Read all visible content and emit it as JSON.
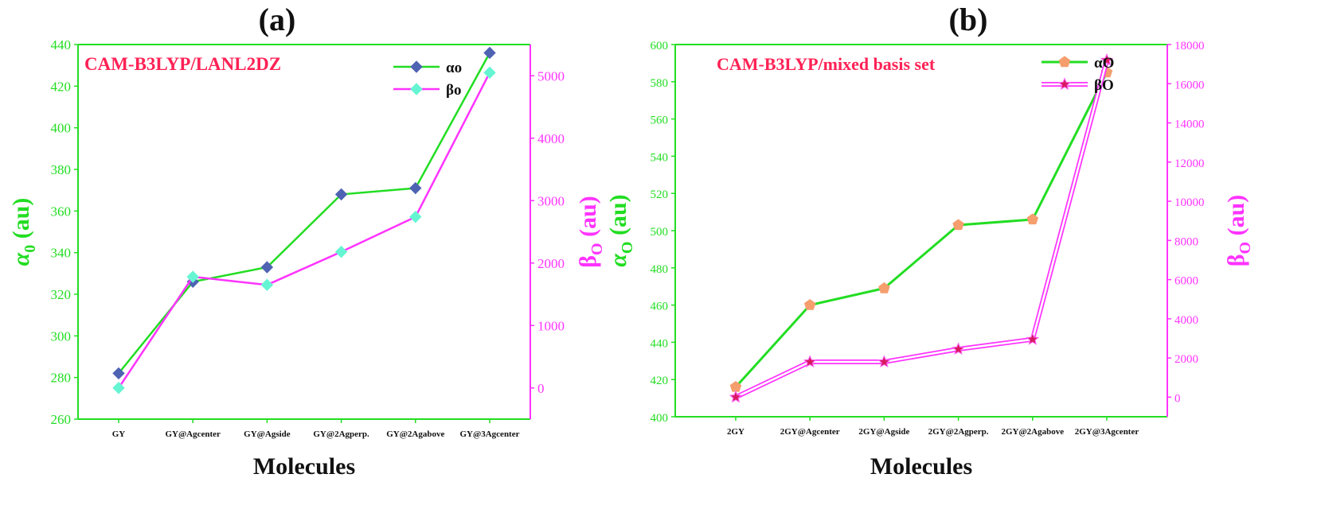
{
  "colors": {
    "green": "#22dd22",
    "magenta": "#ff33ff",
    "title_red": "#ff2255",
    "diamond_blue": "#4f63b3",
    "diamond_cyan": "#66f5d2",
    "pentagon_orange": "#f59e6e",
    "star_red": "#d81b60"
  },
  "chart_data": [
    {
      "panel_label": "(a)",
      "type": "line",
      "method_label": "CAM-B3LYP/LANL2DZ",
      "xlabel": "Molecules",
      "ylabel_left": {
        "main": "α",
        "sub": "0",
        "unit": " (au)"
      },
      "ylabel_right": {
        "main": "β",
        "sub": "O",
        "unit": " (au)"
      },
      "categories": [
        "GY",
        "GY@Agcenter",
        "GY@Agside",
        "GY@2Agperp.",
        "GY@2Agabove",
        "GY@3Agcenter"
      ],
      "ylim_left": [
        260,
        440
      ],
      "yticks_left": [
        260,
        280,
        300,
        320,
        340,
        360,
        380,
        400,
        420,
        440
      ],
      "ylim_right": [
        -500,
        5500
      ],
      "yticks_right": [
        0,
        1000,
        2000,
        3000,
        4000,
        5000
      ],
      "grid": false,
      "legend_position": "top-right",
      "series": [
        {
          "name": "αo",
          "axis": "left",
          "marker": "diamond",
          "values": [
            282,
            326,
            333,
            368,
            371,
            436
          ]
        },
        {
          "name": "βo",
          "axis": "right",
          "marker": "diamond",
          "values": [
            0,
            1780,
            1650,
            2180,
            2740,
            5050
          ]
        }
      ]
    },
    {
      "panel_label": "(b)",
      "type": "line",
      "method_label": "CAM-B3LYP/mixed basis set",
      "xlabel": "Molecules",
      "ylabel_left": {
        "main": "α",
        "sub": "O",
        "unit": " (au)"
      },
      "ylabel_right": {
        "main": "β",
        "sub": "O",
        "unit": " (au)"
      },
      "categories": [
        "2GY",
        "2GY@Agcenter",
        "2GY@Agside",
        "2GY@2Agperp.",
        "2GY@2Agabove",
        "2GY@3Agcenter"
      ],
      "ylim_left": [
        400,
        600
      ],
      "yticks_left": [
        400,
        420,
        440,
        460,
        480,
        500,
        520,
        540,
        560,
        580,
        600
      ],
      "ylim_right": [
        -1000,
        18000
      ],
      "yticks_right": [
        0,
        2000,
        4000,
        6000,
        8000,
        10000,
        12000,
        14000,
        16000,
        18000
      ],
      "grid": false,
      "legend_position": "top-right",
      "series": [
        {
          "name": "αO",
          "axis": "left",
          "marker": "pentagon",
          "values": [
            416,
            460,
            469,
            503,
            506,
            585
          ]
        },
        {
          "name": "βO",
          "axis": "right",
          "marker": "star",
          "values": [
            0,
            1800,
            1800,
            2450,
            2950,
            17200
          ]
        }
      ]
    }
  ]
}
